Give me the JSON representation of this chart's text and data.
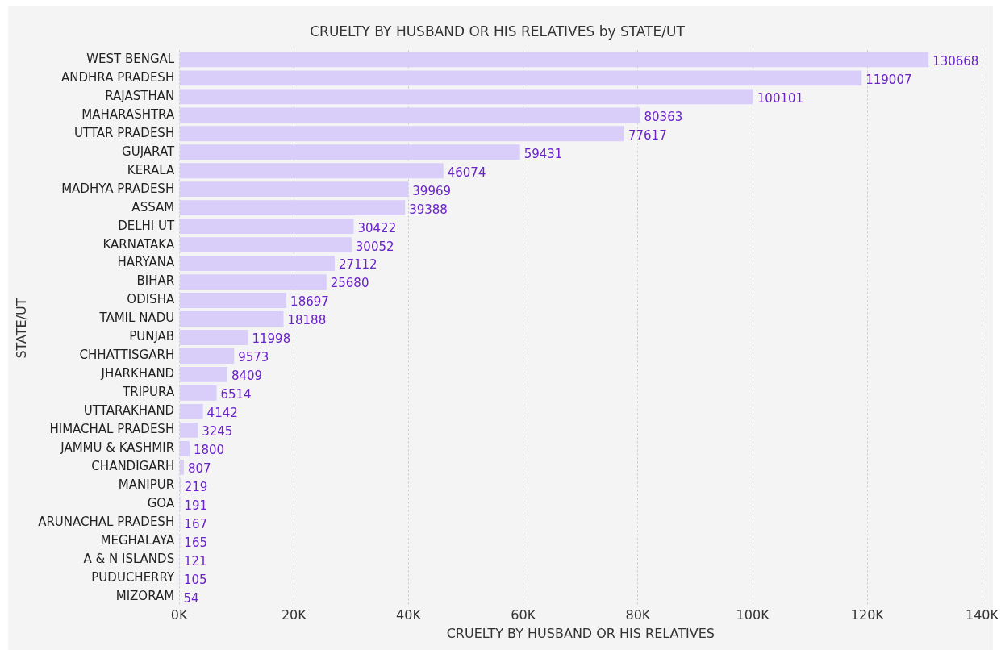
{
  "chart_data": {
    "type": "bar",
    "orientation": "horizontal",
    "title": "CRUELTY BY HUSBAND OR HIS RELATIVES by STATE/UT",
    "xlabel": "CRUELTY BY HUSBAND OR HIS RELATIVES",
    "ylabel": "STATE/UT",
    "categories": [
      "WEST BENGAL",
      "ANDHRA PRADESH",
      "RAJASTHAN",
      "MAHARASHTRA",
      "UTTAR PRADESH",
      "GUJARAT",
      "KERALA",
      "MADHYA PRADESH",
      "ASSAM",
      "DELHI UT",
      "KARNATAKA",
      "HARYANA",
      "BIHAR",
      "ODISHA",
      "TAMIL NADU",
      "PUNJAB",
      "CHHATTISGARH",
      "JHARKHAND",
      "TRIPURA",
      "UTTARAKHAND",
      "HIMACHAL PRADESH",
      "JAMMU & KASHMIR",
      "CHANDIGARH",
      "MANIPUR",
      "GOA",
      "ARUNACHAL PRADESH",
      "MEGHALAYA",
      "A & N ISLANDS",
      "PUDUCHERRY",
      "MIZORAM"
    ],
    "values": [
      130668,
      119007,
      100101,
      80363,
      77617,
      59431,
      46074,
      39969,
      39388,
      30422,
      30052,
      27112,
      25680,
      18697,
      18188,
      11998,
      9573,
      8409,
      6514,
      4142,
      3245,
      1800,
      807,
      219,
      191,
      167,
      165,
      121,
      105,
      54
    ],
    "color": "#d9cdfa",
    "xlim": [
      0,
      140000
    ],
    "xticks": [
      {
        "value": 0,
        "label": "0K"
      },
      {
        "value": 20000,
        "label": "20K"
      },
      {
        "value": 40000,
        "label": "40K"
      },
      {
        "value": 60000,
        "label": "60K"
      },
      {
        "value": 80000,
        "label": "80K"
      },
      {
        "value": 100000,
        "label": "100K"
      },
      {
        "value": 120000,
        "label": "120K"
      },
      {
        "value": 140000,
        "label": "140K"
      }
    ],
    "grid": "x",
    "data_labels": true,
    "legend": false
  }
}
